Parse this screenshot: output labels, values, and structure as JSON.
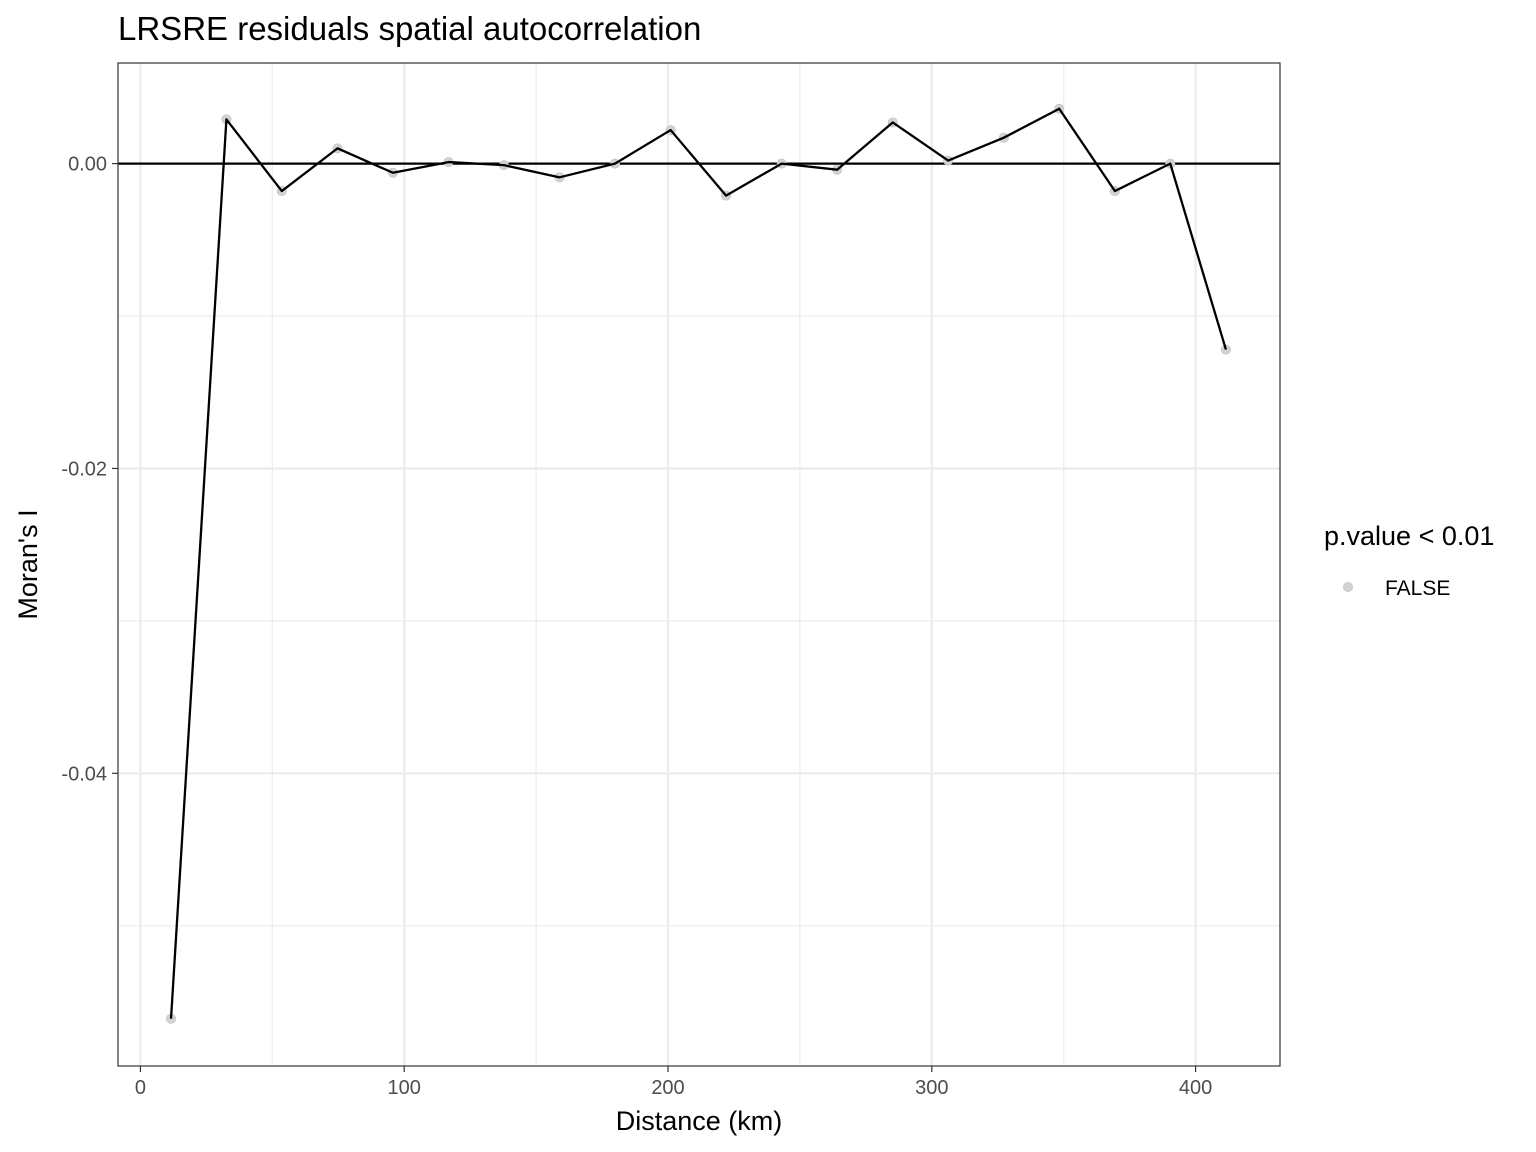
{
  "chart_data": {
    "type": "line",
    "title": "LRSRE residuals spatial autocorrelation",
    "xlabel": "Distance (km)",
    "ylabel": "Moran's I",
    "xlim": [
      -8.5,
      432
    ],
    "ylim": [
      -0.0592,
      0.0066
    ],
    "x_ticks": [
      0,
      100,
      200,
      300,
      400
    ],
    "x_tick_labels": [
      "0",
      "100",
      "200",
      "300",
      "400"
    ],
    "x_minor_ticks": [
      50,
      150,
      250,
      350
    ],
    "y_ticks": [
      0.0,
      -0.02,
      -0.04
    ],
    "y_tick_labels": [
      "0.00",
      "-0.02",
      "-0.04"
    ],
    "y_minor_ticks": [
      -0.01,
      -0.03,
      -0.05
    ],
    "reference_line_y": 0,
    "grid": true,
    "legend_position": "right",
    "legend": {
      "title": "p.value < 0.01",
      "entries": [
        {
          "label": "FALSE",
          "color": "#d3d3d3"
        }
      ]
    },
    "colors": {
      "line": "#000000",
      "point": "#d3d3d3",
      "grid": "#ebebeb"
    },
    "series": [
      {
        "x": [
          11.6,
          32.6,
          53.6,
          74.7,
          95.7,
          116.8,
          137.8,
          158.9,
          179.9,
          201.0,
          222.0,
          243.1,
          264.1,
          285.2,
          306.2,
          327.3,
          348.3,
          369.4,
          390.4,
          411.5
        ],
        "values": [
          -0.0561,
          0.0029,
          -0.0018,
          0.001,
          -0.0006,
          0.0001,
          -0.0001,
          -0.0009,
          0.0,
          0.0022,
          -0.0021,
          0.0,
          -0.0004,
          0.0027,
          0.0002,
          0.0017,
          0.0036,
          -0.0018,
          0.0,
          -0.0122
        ]
      }
    ]
  }
}
